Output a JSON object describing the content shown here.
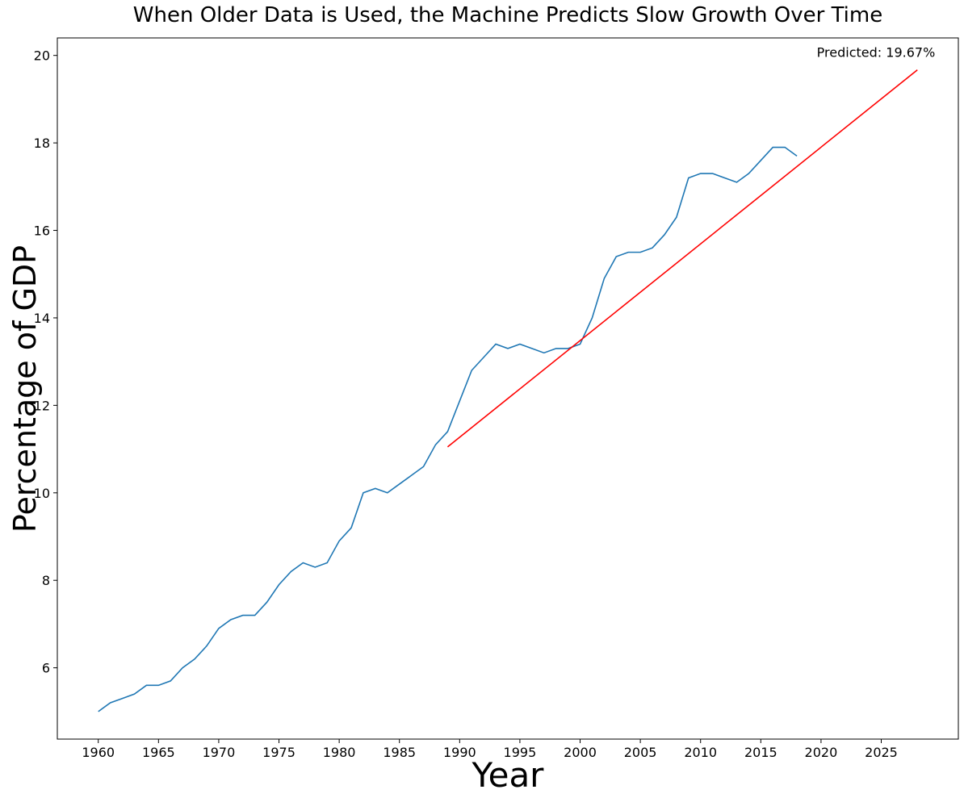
{
  "chart_data": {
    "type": "line",
    "title": "When Older Data is Used, the Machine Predicts Slow Growth Over Time",
    "xlabel": "Year",
    "ylabel": "Percentage of GDP",
    "xlim": [
      1956.6,
      2031.4
    ],
    "ylim": [
      4.37,
      20.4
    ],
    "xticks": [
      1960,
      1965,
      1970,
      1975,
      1980,
      1985,
      1990,
      1995,
      2000,
      2005,
      2010,
      2015,
      2020,
      2025
    ],
    "yticks": [
      6,
      8,
      10,
      12,
      14,
      16,
      18,
      20
    ],
    "grid": false,
    "annotation": {
      "text": "Predicted: 19.67%",
      "x": 2028,
      "y": 19.67
    },
    "series": [
      {
        "color": "#1f77b4",
        "x": [
          1960,
          1961,
          1962,
          1963,
          1964,
          1965,
          1966,
          1967,
          1968,
          1969,
          1970,
          1971,
          1972,
          1973,
          1974,
          1975,
          1976,
          1977,
          1978,
          1979,
          1980,
          1981,
          1982,
          1983,
          1984,
          1985,
          1986,
          1987,
          1988,
          1989,
          1990,
          1991,
          1992,
          1993,
          1994,
          1995,
          1996,
          1997,
          1998,
          1999,
          2000,
          2001,
          2002,
          2003,
          2004,
          2005,
          2006,
          2007,
          2008,
          2009,
          2010,
          2011,
          2012,
          2013,
          2014,
          2015,
          2016,
          2017,
          2018
        ],
        "values": [
          5.0,
          5.2,
          5.3,
          5.4,
          5.6,
          5.6,
          5.7,
          6.0,
          6.2,
          6.5,
          6.9,
          7.1,
          7.2,
          7.2,
          7.5,
          7.9,
          8.2,
          8.4,
          8.3,
          8.4,
          8.9,
          9.2,
          10.0,
          10.1,
          10.0,
          10.2,
          10.4,
          10.6,
          11.1,
          11.4,
          12.1,
          12.8,
          13.1,
          13.4,
          13.3,
          13.4,
          13.3,
          13.2,
          13.3,
          13.3,
          13.4,
          14.0,
          14.9,
          15.4,
          15.5,
          15.5,
          15.6,
          15.9,
          16.3,
          17.2,
          17.3,
          17.3,
          17.2,
          17.1,
          17.3,
          17.6,
          17.9,
          17.9,
          17.7
        ]
      },
      {
        "color": "#ff0000",
        "x": [
          1989,
          2028
        ],
        "values": [
          11.05,
          19.67
        ]
      }
    ]
  }
}
